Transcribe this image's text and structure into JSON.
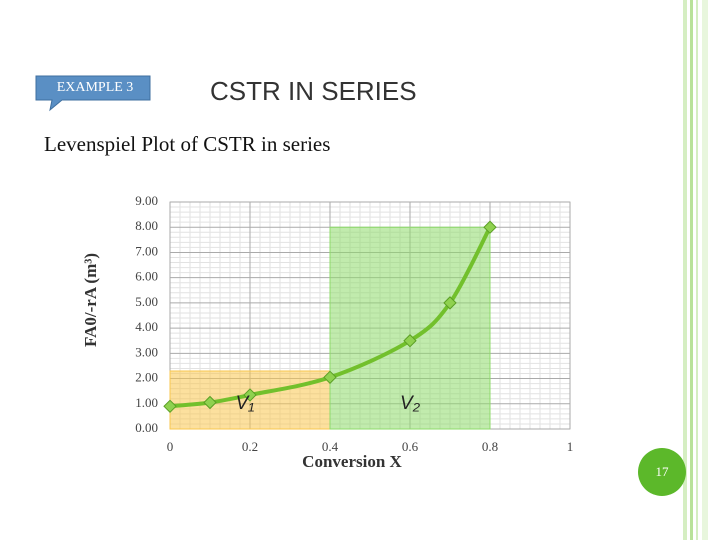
{
  "slide": {
    "badge": "EXAMPLE 3",
    "title": "CSTR IN SERIES",
    "subtitle": "Levenspiel Plot of CSTR in series",
    "page_number": "17"
  },
  "chart_data": {
    "type": "line",
    "xlabel": "Conversion X",
    "ylabel": "FA0/-rA (m³)",
    "x": [
      0,
      0.1,
      0.2,
      0.4,
      0.6,
      0.7,
      0.8
    ],
    "series": [
      {
        "color": "#72c02c",
        "values": [
          0.9,
          1.05,
          1.35,
          2.05,
          3.5,
          5.0,
          8.0
        ]
      }
    ],
    "regions": [
      {
        "label": "V₁",
        "x": [
          0,
          0.4
        ],
        "height": 2.3,
        "color": "#f9c74f"
      },
      {
        "label": "V₂",
        "x": [
          0.4,
          0.8
        ],
        "height": 8.0,
        "color": "#8edb6a"
      }
    ],
    "xlim": [
      0,
      1
    ],
    "ylim": [
      0,
      9
    ],
    "xticks": [
      0,
      0.2,
      0.4,
      0.6,
      0.8,
      1
    ],
    "yticks": [
      {
        "value": 0,
        "label": "0.00"
      },
      {
        "value": 1,
        "label": "1.00"
      },
      {
        "value": 2,
        "label": "2.00"
      },
      {
        "value": 3,
        "label": "3.00"
      },
      {
        "value": 4,
        "label": "4.00"
      },
      {
        "value": 5,
        "label": "5.00"
      },
      {
        "value": 6,
        "label": "6.00"
      },
      {
        "value": 7,
        "label": "7.00"
      },
      {
        "value": 8,
        "label": "8.00"
      },
      {
        "value": 9,
        "label": "9.00"
      }
    ],
    "grid": true
  }
}
